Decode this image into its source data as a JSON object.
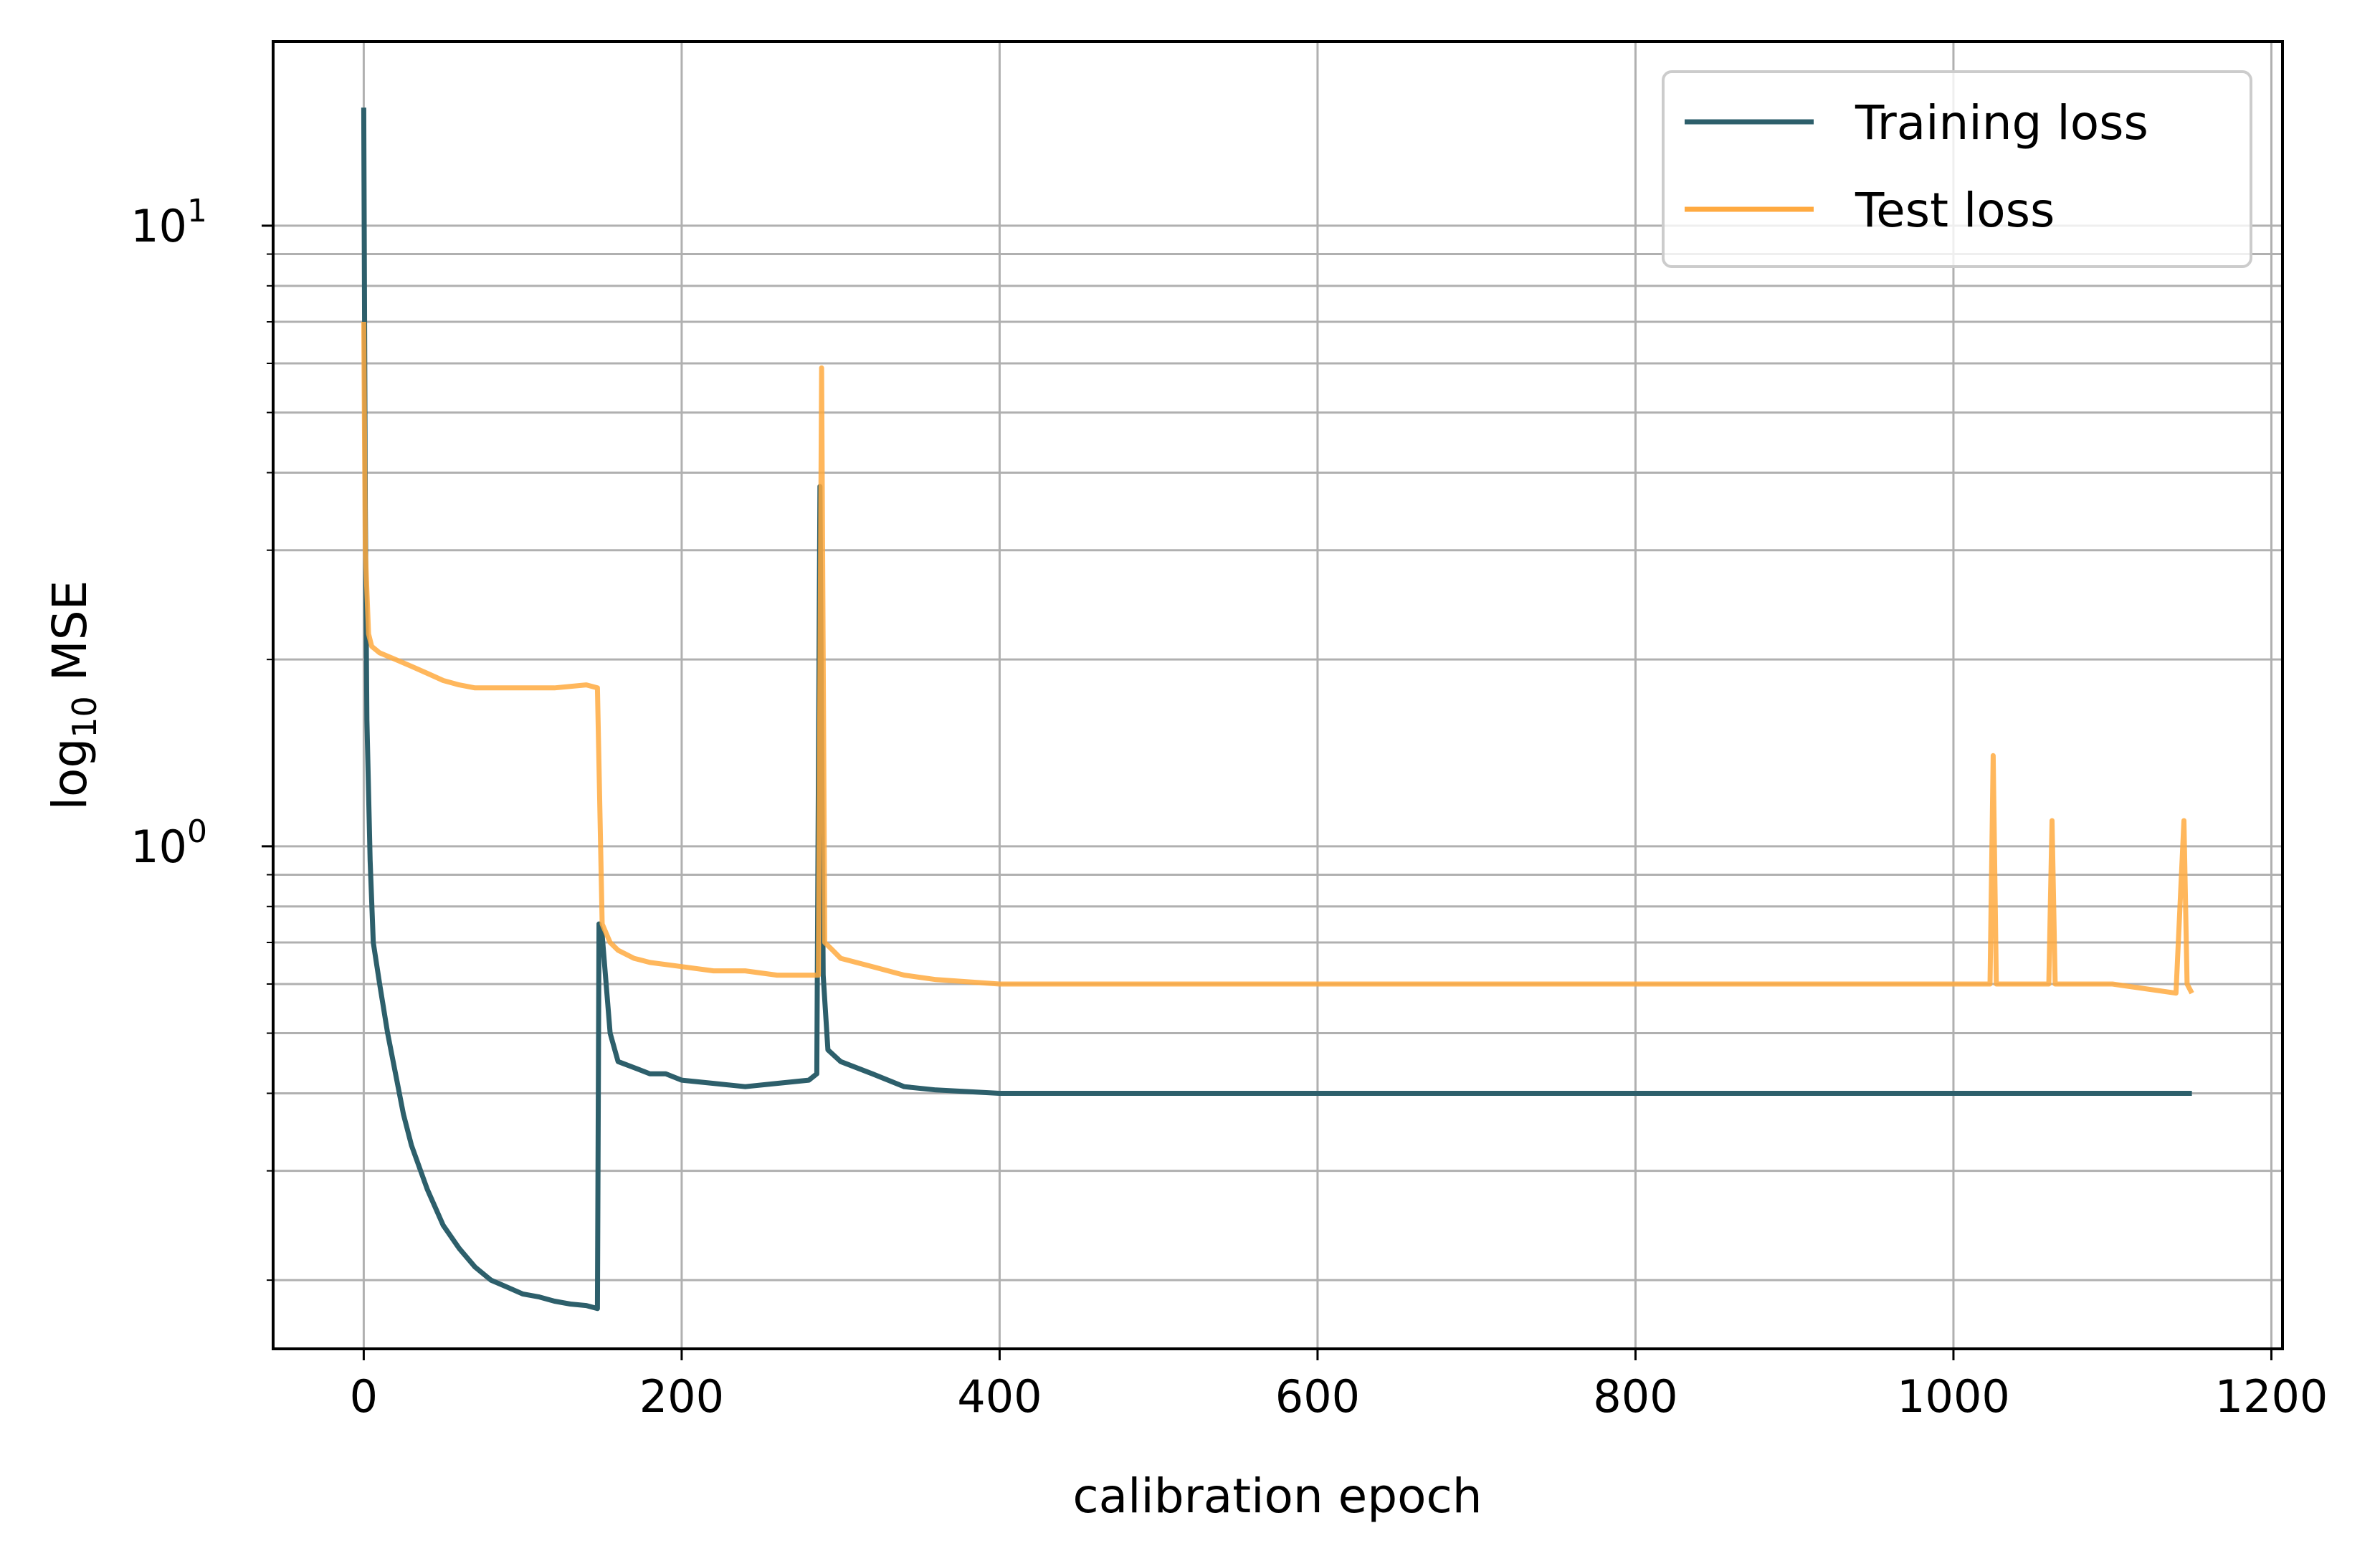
{
  "chart_data": {
    "type": "line",
    "xlabel": "calibration epoch",
    "ylabel_main": "log",
    "ylabel_sub": "10",
    "ylabel_rest": " MSE",
    "yscale": "log",
    "xlim": [
      -57,
      1207
    ],
    "ylim": [
      0.155,
      19.8
    ],
    "grid": true,
    "x_ticks": [
      0,
      200,
      400,
      600,
      800,
      1000,
      1200
    ],
    "x_tick_labels": [
      "0",
      "200",
      "400",
      "600",
      "800",
      "1000",
      "1200"
    ],
    "y_major_ticks": [
      {
        "value": 1,
        "base": "10",
        "exp": "0"
      },
      {
        "value": 10,
        "base": "10",
        "exp": "1"
      }
    ],
    "legend": {
      "position": "upper right"
    },
    "series": [
      {
        "name": "Training loss",
        "color": "#2d5f6b",
        "x": [
          0,
          1,
          2,
          4,
          6,
          10,
          15,
          20,
          25,
          30,
          40,
          50,
          60,
          70,
          80,
          90,
          100,
          110,
          120,
          130,
          140,
          147,
          148,
          150,
          155,
          160,
          170,
          180,
          190,
          200,
          220,
          240,
          260,
          280,
          285,
          287,
          289,
          292,
          300,
          320,
          340,
          360,
          400,
          450,
          500,
          550,
          600,
          650,
          700,
          750,
          800,
          850,
          900,
          950,
          1000,
          1050,
          1100,
          1150
        ],
        "values": [
          15.5,
          3.5,
          1.6,
          0.95,
          0.7,
          0.6,
          0.5,
          0.43,
          0.37,
          0.33,
          0.28,
          0.245,
          0.225,
          0.21,
          0.2,
          0.195,
          0.19,
          0.188,
          0.185,
          0.183,
          0.182,
          0.18,
          0.75,
          0.72,
          0.5,
          0.45,
          0.44,
          0.43,
          0.43,
          0.42,
          0.415,
          0.41,
          0.415,
          0.42,
          0.43,
          3.8,
          0.62,
          0.47,
          0.45,
          0.43,
          0.41,
          0.405,
          0.4,
          0.4,
          0.4,
          0.4,
          0.4,
          0.4,
          0.4,
          0.4,
          0.4,
          0.4,
          0.4,
          0.4,
          0.4,
          0.4,
          0.4,
          0.4
        ]
      },
      {
        "name": "Test loss",
        "color": "#ffaa40",
        "x": [
          0,
          1,
          3,
          5,
          10,
          20,
          30,
          40,
          50,
          60,
          70,
          80,
          100,
          120,
          140,
          147,
          150,
          155,
          160,
          170,
          180,
          200,
          220,
          240,
          260,
          280,
          286,
          288,
          290,
          295,
          300,
          320,
          340,
          360,
          400,
          450,
          500,
          550,
          600,
          650,
          700,
          750,
          800,
          850,
          900,
          950,
          1000,
          1023,
          1025,
          1027,
          1050,
          1060,
          1062,
          1064,
          1100,
          1140,
          1145,
          1147,
          1150
        ],
        "values": [
          7.0,
          3.0,
          2.2,
          2.1,
          2.05,
          2.0,
          1.95,
          1.9,
          1.85,
          1.82,
          1.8,
          1.8,
          1.8,
          1.8,
          1.82,
          1.8,
          0.75,
          0.7,
          0.68,
          0.66,
          0.65,
          0.64,
          0.63,
          0.63,
          0.62,
          0.62,
          0.62,
          5.9,
          0.7,
          0.68,
          0.66,
          0.64,
          0.62,
          0.61,
          0.6,
          0.6,
          0.6,
          0.6,
          0.6,
          0.6,
          0.6,
          0.6,
          0.6,
          0.6,
          0.6,
          0.6,
          0.6,
          0.6,
          1.4,
          0.6,
          0.6,
          0.6,
          1.1,
          0.6,
          0.6,
          0.58,
          1.1,
          0.6,
          0.58
        ]
      }
    ]
  }
}
